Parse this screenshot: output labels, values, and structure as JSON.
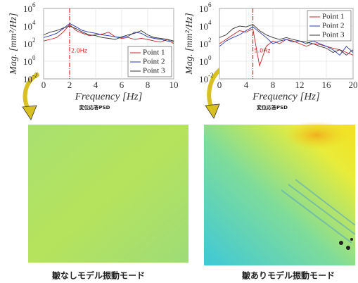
{
  "chart_data": [
    {
      "type": "line",
      "x": [
        0,
        0.5,
        1,
        1.5,
        2,
        2.5,
        3,
        3.5,
        4,
        4.5,
        5,
        5.5,
        6,
        6.5,
        7,
        7.5,
        8,
        8.5,
        9,
        9.5,
        10
      ],
      "xlabel": "Frequency [Hz]",
      "ylabel": "Mag. [mm²/Hz]",
      "subtitle": "変位応答PSD",
      "xlim": [
        0,
        10
      ],
      "xticks": [
        0,
        2,
        4,
        6,
        8,
        10
      ],
      "log_y": true,
      "ylim": [
        0.01,
        1000000
      ],
      "yticks": [
        {
          "value": 0.01,
          "label": "10",
          "exponent": "-2"
        },
        {
          "value": 1,
          "label": "10",
          "exponent": "0"
        },
        {
          "value": 100,
          "label": "10",
          "exponent": "2"
        },
        {
          "value": 10000,
          "label": "10",
          "exponent": "4"
        },
        {
          "value": 1000000,
          "label": "10",
          "exponent": "6"
        }
      ],
      "grid": true,
      "legend": "lower-right",
      "annotation": {
        "x": 2,
        "text": "2.0Hz",
        "color": "#d22"
      },
      "series": [
        {
          "name": "Point 1",
          "color": "#c0282a",
          "values": [
            200,
            300,
            500,
            2000,
            15000,
            3000,
            1500,
            800,
            1000,
            1200,
            2000,
            600,
            400,
            500,
            300,
            400,
            300,
            200,
            150,
            300,
            100
          ]
        },
        {
          "name": "Point 2",
          "color": "#2a3ab0",
          "values": [
            500,
            800,
            1500,
            5000,
            20000,
            8000,
            3000,
            2000,
            1500,
            1000,
            800,
            600,
            500,
            700,
            2000,
            1500,
            600,
            400,
            300,
            200,
            150
          ]
        },
        {
          "name": "Point 3",
          "color": "#333333",
          "values": [
            1000,
            2000,
            3000,
            6000,
            10000,
            5000,
            2000,
            1000,
            800,
            500,
            400,
            300,
            600,
            1000,
            1500,
            3000,
            1000,
            500,
            400,
            300,
            200
          ]
        }
      ]
    },
    {
      "type": "line",
      "x": [
        0,
        1,
        2,
        3,
        4,
        5,
        6,
        7,
        8,
        9,
        10,
        11,
        12,
        13,
        14,
        15,
        16,
        17,
        18,
        19,
        20
      ],
      "xlabel": "Frequency [Hz]",
      "ylabel": "Mag. [mm²/Hz]",
      "subtitle": "変位応答PSD",
      "xlim": [
        0,
        20
      ],
      "xticks": [
        0,
        4,
        8,
        12,
        16,
        20
      ],
      "log_y": true,
      "ylim": [
        0.01,
        1000000
      ],
      "yticks": [
        {
          "value": 0.01,
          "label": "10",
          "exponent": "-2"
        },
        {
          "value": 1,
          "label": "10",
          "exponent": "0"
        },
        {
          "value": 100,
          "label": "10",
          "exponent": "2"
        },
        {
          "value": 10000,
          "label": "10",
          "exponent": "4"
        },
        {
          "value": 1000000,
          "label": "10",
          "exponent": "6"
        }
      ],
      "grid": true,
      "legend": "upper-right",
      "annotation": {
        "x": 5,
        "text": "5.0Hz",
        "color": "#d22"
      },
      "series": [
        {
          "name": "Point 1",
          "color": "#c0282a",
          "values": [
            100,
            300,
            1000,
            3000,
            2000,
            5000,
            0.3,
            50,
            200,
            100,
            300,
            200,
            100,
            50,
            100,
            80,
            50,
            30,
            20,
            10,
            5
          ]
        },
        {
          "name": "Point 2",
          "color": "#2a3ab0",
          "values": [
            50,
            200,
            500,
            1000,
            3000,
            8000,
            2000,
            500,
            100,
            200,
            300,
            150,
            200,
            100,
            200,
            100,
            50,
            20,
            5,
            50,
            10
          ]
        },
        {
          "name": "Point 3",
          "color": "#333333",
          "values": [
            500,
            1000,
            5000,
            10000,
            8000,
            15000,
            3000,
            1000,
            500,
            300,
            500,
            300,
            200,
            150,
            100,
            50,
            30,
            10,
            20,
            5,
            20
          ]
        }
      ]
    }
  ],
  "panels": [
    {
      "caption": "皺なしモデル振動モード"
    },
    {
      "caption": "皺ありモデル振動モード"
    }
  ]
}
